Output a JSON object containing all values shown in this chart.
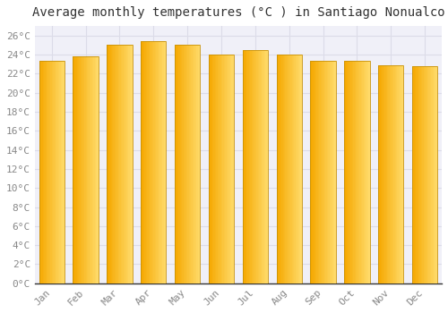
{
  "title": "Average monthly temperatures (°C ) in Santiago Nonualco",
  "months": [
    "Jan",
    "Feb",
    "Mar",
    "Apr",
    "May",
    "Jun",
    "Jul",
    "Aug",
    "Sep",
    "Oct",
    "Nov",
    "Dec"
  ],
  "values": [
    23.3,
    23.8,
    25.0,
    25.4,
    25.0,
    24.0,
    24.5,
    24.0,
    23.3,
    23.3,
    22.9,
    22.8
  ],
  "bar_color_left": "#F5A800",
  "bar_color_right": "#FFDD6E",
  "bar_edge_color": "#C8920A",
  "background_color": "#FFFFFF",
  "plot_bg_color": "#F0F0F8",
  "grid_color": "#DCDCE8",
  "ylim": [
    0,
    27
  ],
  "yticks": [
    0,
    2,
    4,
    6,
    8,
    10,
    12,
    14,
    16,
    18,
    20,
    22,
    24,
    26
  ],
  "title_fontsize": 10,
  "tick_fontsize": 8,
  "tick_color": "#888888",
  "axis_label_color": "#555555",
  "title_font_family": "monospace",
  "bar_width": 0.75
}
